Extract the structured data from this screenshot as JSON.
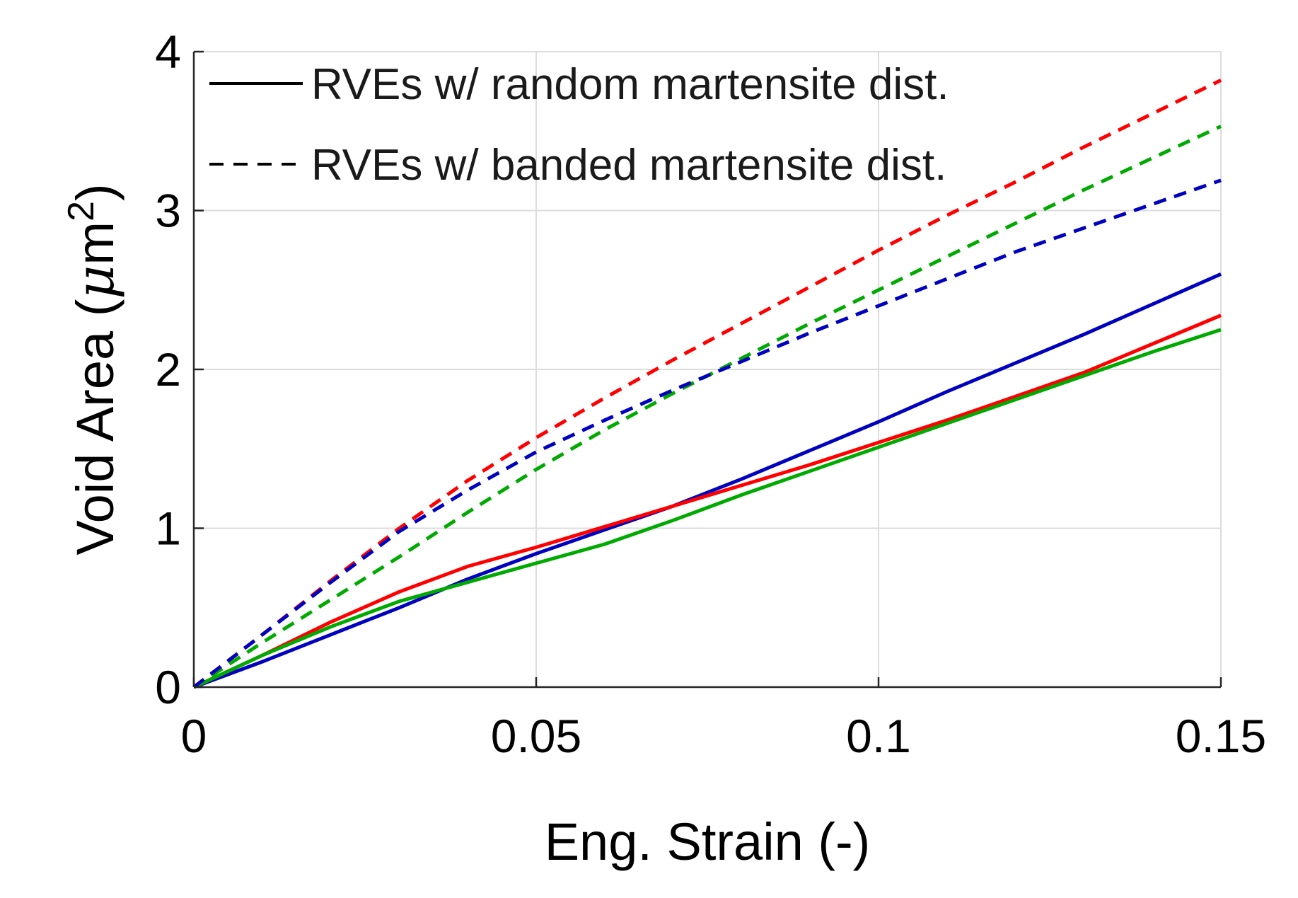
{
  "chart_data": {
    "type": "line",
    "title": "",
    "xlabel": "Eng. Strain (-)",
    "ylabel_prefix": "Void Area (",
    "ylabel_mu": "μ",
    "ylabel_unit": "m",
    "ylabel_sup": "2",
    "ylabel_suffix": ")",
    "xlim": [
      0,
      0.15
    ],
    "ylim": [
      0,
      4
    ],
    "xticks": [
      0,
      0.05,
      0.1,
      0.15
    ],
    "xtick_labels": [
      "0",
      "0.05",
      "0.1",
      "0.15"
    ],
    "yticks": [
      0,
      1,
      2,
      3,
      4
    ],
    "ytick_labels": [
      "0",
      "1",
      "2",
      "3",
      "4"
    ],
    "grid": true,
    "legend": {
      "placement": "top-left",
      "entries": [
        {
          "label": "RVEs w/ random martensite dist.",
          "style": "solid",
          "color": "#000000"
        },
        {
          "label": "RVEs w/ banded martensite dist.",
          "style": "dashed",
          "color": "#000000"
        }
      ]
    },
    "series": [
      {
        "name": "random-blue",
        "color": "#0000bf",
        "style": "solid",
        "x": [
          0,
          0.01,
          0.02,
          0.03,
          0.04,
          0.05,
          0.06,
          0.07,
          0.08,
          0.09,
          0.1,
          0.11,
          0.12,
          0.13,
          0.14,
          0.15
        ],
        "y": [
          0,
          0.16,
          0.33,
          0.5,
          0.68,
          0.84,
          0.99,
          1.14,
          1.31,
          1.49,
          1.67,
          1.86,
          2.04,
          2.22,
          2.41,
          2.6
        ]
      },
      {
        "name": "random-red",
        "color": "#ff0000",
        "style": "solid",
        "x": [
          0,
          0.01,
          0.02,
          0.03,
          0.04,
          0.05,
          0.06,
          0.07,
          0.08,
          0.09,
          0.1,
          0.11,
          0.12,
          0.13,
          0.14,
          0.15
        ],
        "y": [
          0,
          0.2,
          0.41,
          0.6,
          0.76,
          0.88,
          1.01,
          1.14,
          1.27,
          1.4,
          1.54,
          1.68,
          1.83,
          1.98,
          2.16,
          2.34
        ]
      },
      {
        "name": "random-green",
        "color": "#00aa00",
        "style": "solid",
        "x": [
          0,
          0.01,
          0.02,
          0.03,
          0.04,
          0.05,
          0.06,
          0.07,
          0.08,
          0.09,
          0.1,
          0.11,
          0.12,
          0.13,
          0.14,
          0.15
        ],
        "y": [
          0,
          0.2,
          0.38,
          0.54,
          0.66,
          0.78,
          0.9,
          1.05,
          1.21,
          1.36,
          1.51,
          1.66,
          1.81,
          1.96,
          2.11,
          2.25
        ]
      },
      {
        "name": "banded-red",
        "color": "#ff0000",
        "style": "dashed",
        "x": [
          0,
          0.01,
          0.02,
          0.03,
          0.04,
          0.05,
          0.06,
          0.07,
          0.08,
          0.09,
          0.1,
          0.11,
          0.12,
          0.13,
          0.14,
          0.15
        ],
        "y": [
          0,
          0.33,
          0.67,
          1.0,
          1.3,
          1.57,
          1.82,
          2.06,
          2.29,
          2.52,
          2.75,
          2.97,
          3.18,
          3.4,
          3.61,
          3.82
        ]
      },
      {
        "name": "banded-green",
        "color": "#00aa00",
        "style": "dashed",
        "x": [
          0,
          0.01,
          0.02,
          0.03,
          0.04,
          0.05,
          0.06,
          0.07,
          0.08,
          0.09,
          0.1,
          0.11,
          0.12,
          0.13,
          0.14,
          0.15
        ],
        "y": [
          0,
          0.28,
          0.55,
          0.82,
          1.1,
          1.37,
          1.62,
          1.85,
          2.07,
          2.29,
          2.5,
          2.71,
          2.92,
          3.13,
          3.33,
          3.53
        ]
      },
      {
        "name": "banded-blue",
        "color": "#0000bf",
        "style": "dashed",
        "x": [
          0,
          0.01,
          0.02,
          0.03,
          0.04,
          0.05,
          0.06,
          0.07,
          0.08,
          0.09,
          0.1,
          0.11,
          0.12,
          0.13,
          0.14,
          0.15
        ],
        "y": [
          0,
          0.33,
          0.66,
          0.98,
          1.24,
          1.48,
          1.68,
          1.87,
          2.05,
          2.23,
          2.4,
          2.57,
          2.74,
          2.89,
          3.04,
          3.19
        ]
      }
    ]
  }
}
